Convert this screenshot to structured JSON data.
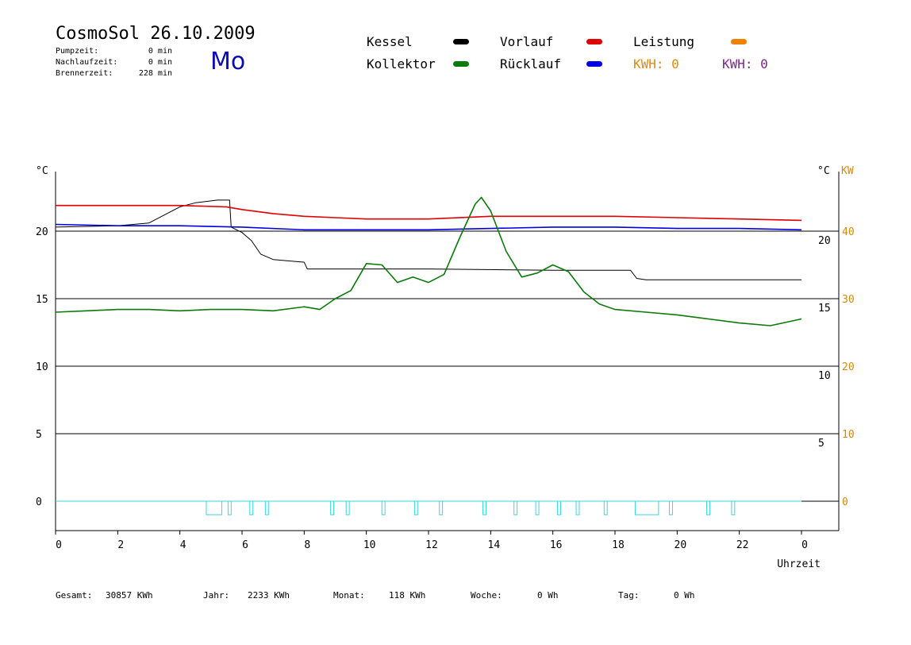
{
  "header": {
    "title": "CosmoSol 26.10.2009",
    "day": "Mo",
    "info": [
      {
        "label": "Pumpzeit:",
        "value": "0 min"
      },
      {
        "label": "Nachlaufzeit:",
        "value": "0 min"
      },
      {
        "label": "Brennerzeit:",
        "value": "228 min"
      }
    ]
  },
  "legend": {
    "items": [
      {
        "label": "Kessel",
        "color": "#000000"
      },
      {
        "label": "Kollektor",
        "color": "#0a7a0a"
      },
      {
        "label": "Vorlauf",
        "color": "#e00000"
      },
      {
        "label": "Rücklauf",
        "color": "#0000e0"
      },
      {
        "label": "Leistung",
        "color": "#f08000"
      }
    ],
    "kwh_orange": "KWH: 0",
    "kwh_purple": "KWH: 0",
    "kwh_orange_color": "#e08a10",
    "kwh_purple_color": "#7a2a8a"
  },
  "footer": {
    "gesamt_label": "Gesamt:",
    "gesamt_value": "30857 KWh",
    "jahr_label": "Jahr:",
    "jahr_value": "2233 KWh",
    "monat_label": "Monat:",
    "monat_value": "118 KWh",
    "woche_label": "Woche:",
    "woche_value": "0 Wh",
    "tag_label": "Tag:",
    "tag_value": "0 Wh"
  },
  "chart_data": {
    "type": "line",
    "title": "CosmoSol 26.10.2009",
    "xlabel": "Uhrzeit",
    "ylabel_left": "°C",
    "ylabel_right": "°C",
    "ylabel_right2": "KW",
    "xlim": [
      0,
      24
    ],
    "ylim": [
      -2,
      25
    ],
    "x_ticks": [
      "0",
      "2",
      "4",
      "6",
      "8",
      "10",
      "12",
      "14",
      "16",
      "18",
      "20",
      "22",
      "0"
    ],
    "y_ticks_left": [
      "20",
      "15",
      "10",
      "5",
      "0"
    ],
    "y_ticks_right": [
      "20",
      "15",
      "10",
      "5"
    ],
    "y_ticks_kw": [
      "40",
      "30",
      "20",
      "10",
      "0"
    ],
    "grid": true,
    "series": [
      {
        "name": "Kessel",
        "color": "#000000",
        "x": [
          0,
          2,
          3,
          4,
          4.5,
          5.2,
          5.6,
          5.65,
          6,
          6.3,
          6.6,
          7,
          8,
          8.1,
          12,
          16,
          18.5,
          18.7,
          19,
          24
        ],
        "y": [
          20.3,
          20.4,
          20.6,
          21.8,
          22.1,
          22.3,
          22.3,
          20.3,
          19.9,
          19.3,
          18.3,
          17.9,
          17.7,
          17.2,
          17.2,
          17.1,
          17.1,
          16.5,
          16.4,
          16.4
        ]
      },
      {
        "name": "Vorlauf",
        "color": "#e00000",
        "x": [
          0,
          4,
          5.5,
          6,
          7,
          8,
          9,
          10,
          12,
          14,
          16,
          18,
          20,
          22,
          24
        ],
        "y": [
          21.9,
          21.9,
          21.8,
          21.6,
          21.3,
          21.1,
          21.0,
          20.9,
          20.9,
          21.1,
          21.1,
          21.1,
          21.0,
          20.9,
          20.8
        ]
      },
      {
        "name": "Rücklauf",
        "color": "#0000e0",
        "x": [
          0,
          2,
          4,
          6,
          8,
          10,
          12,
          14,
          16,
          18,
          20,
          22,
          24
        ],
        "y": [
          20.5,
          20.4,
          20.4,
          20.3,
          20.1,
          20.1,
          20.1,
          20.2,
          20.3,
          20.3,
          20.2,
          20.2,
          20.1
        ]
      },
      {
        "name": "Kollektor",
        "color": "#0a7a0a",
        "x": [
          0,
          1,
          2,
          3,
          4,
          5,
          6,
          7,
          8,
          8.5,
          9,
          9.5,
          10,
          10.5,
          11,
          11.5,
          12,
          12.5,
          13,
          13.5,
          13.7,
          14,
          14.5,
          15,
          15.5,
          16,
          16.5,
          17,
          17.5,
          18,
          19,
          20,
          21,
          22,
          23,
          24
        ],
        "y": [
          14.0,
          14.1,
          14.2,
          14.2,
          14.1,
          14.2,
          14.2,
          14.1,
          14.4,
          14.2,
          15.0,
          15.6,
          17.6,
          17.5,
          16.2,
          16.6,
          16.2,
          16.8,
          19.5,
          22.0,
          22.5,
          21.5,
          18.5,
          16.6,
          16.9,
          17.5,
          17.0,
          15.5,
          14.6,
          14.2,
          14.0,
          13.8,
          13.5,
          13.2,
          13.0,
          13.5
        ]
      }
    ],
    "pump_intervals": [
      [
        4.85,
        5.35
      ],
      [
        5.55,
        5.65
      ],
      [
        6.25,
        6.35
      ],
      [
        6.75,
        6.85
      ],
      [
        8.85,
        8.95
      ],
      [
        9.35,
        9.45
      ],
      [
        10.5,
        10.6
      ],
      [
        11.55,
        11.65
      ],
      [
        12.35,
        12.45
      ],
      [
        13.75,
        13.85
      ],
      [
        14.75,
        14.85
      ],
      [
        15.45,
        15.55
      ],
      [
        16.15,
        16.25
      ],
      [
        16.75,
        16.85
      ],
      [
        17.65,
        17.75
      ],
      [
        18.65,
        19.4
      ],
      [
        19.75,
        19.85
      ],
      [
        20.95,
        21.05
      ],
      [
        21.75,
        21.85
      ]
    ],
    "pump_color": "#39d6e0"
  }
}
